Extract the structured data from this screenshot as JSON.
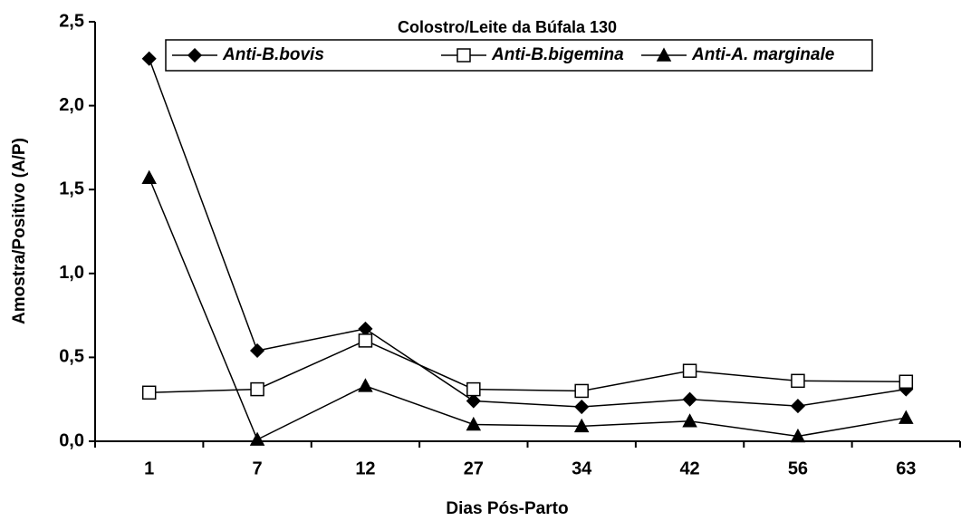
{
  "chart_data": {
    "type": "line",
    "title": "Colostro/Leite da Búfala 130",
    "x_label": "Dias Pós-Parto",
    "y_label": "Amostra/Positivo (A/P)",
    "categories": [
      "1",
      "7",
      "12",
      "27",
      "34",
      "42",
      "56",
      "63"
    ],
    "series": [
      {
        "name": "Anti-B.bovis",
        "color": "#000000",
        "marker": "diamond",
        "values": [
          2.28,
          0.54,
          0.67,
          0.24,
          0.205,
          0.25,
          0.21,
          0.31
        ]
      },
      {
        "name": "Anti-B.bigemina",
        "color": "#000000",
        "marker": "square",
        "values": [
          0.29,
          0.31,
          0.6,
          0.31,
          0.3,
          0.42,
          0.36,
          0.355
        ]
      },
      {
        "name": "Anti-A. marginale",
        "color": "#000000",
        "marker": "triangle",
        "values": [
          1.57,
          0.01,
          0.33,
          0.1,
          0.09,
          0.12,
          0.03,
          0.14
        ]
      }
    ],
    "ylim": [
      0,
      2.5
    ],
    "yticks": [
      {
        "value": 0,
        "label": "0,0"
      },
      {
        "value": 0.5,
        "label": "0,5"
      },
      {
        "value": 1,
        "label": "1,0"
      },
      {
        "value": 1.5,
        "label": "1,5"
      },
      {
        "value": 2,
        "label": "2,0"
      },
      {
        "value": 2.5,
        "label": "2,5"
      }
    ],
    "grid": false,
    "legend": "top"
  }
}
